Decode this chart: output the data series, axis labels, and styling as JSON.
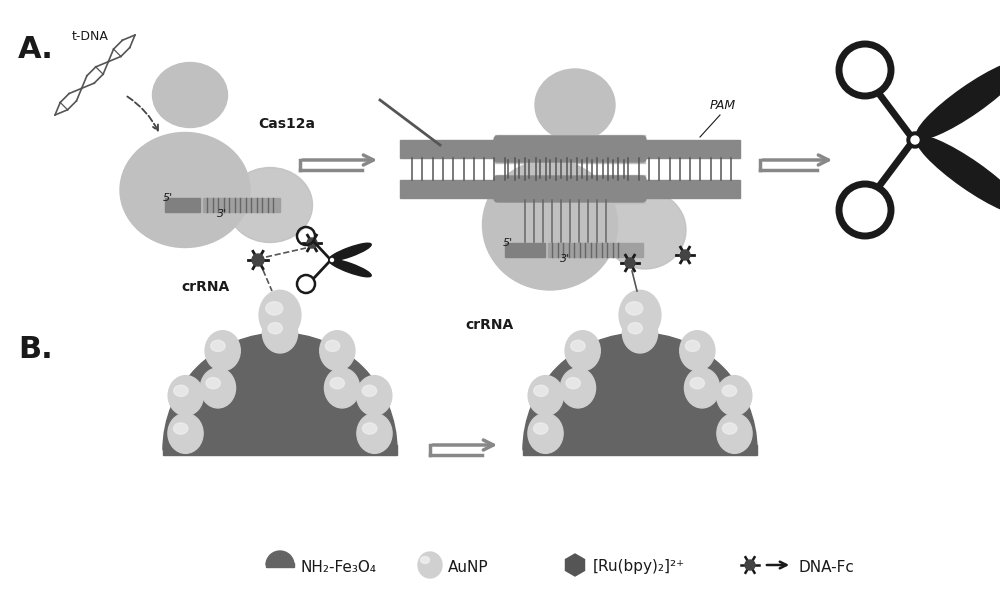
{
  "background_color": "#ffffff",
  "panel_A_label": "A.",
  "panel_B_label": "B.",
  "label_fontsize": 22,
  "cas12a_color": "#c0c0c0",
  "cas12a_dark": "#a8a8a8",
  "dna_bar_color": "#888888",
  "tdna_label": "t-DNA",
  "cas12a_label": "Cas12a",
  "crna_label1": "crRNA",
  "crna_label2": "crRNA",
  "pam_label": "PAM",
  "fe3o4_color": "#646464",
  "aunp_color": "#d0d0d0",
  "aunp_hi_color": "#f0f0f0",
  "legend_items": [
    "NH₂-Fe₃O₄",
    "AuNP",
    "[Ru(bpy)₂]²⁺",
    "DNA-Fc"
  ],
  "legend_fontsize": 11,
  "text_color": "#1a1a1a",
  "dark_color": "#1a1a1a",
  "mid_gray": "#999999",
  "light_gray": "#bbbbbb"
}
